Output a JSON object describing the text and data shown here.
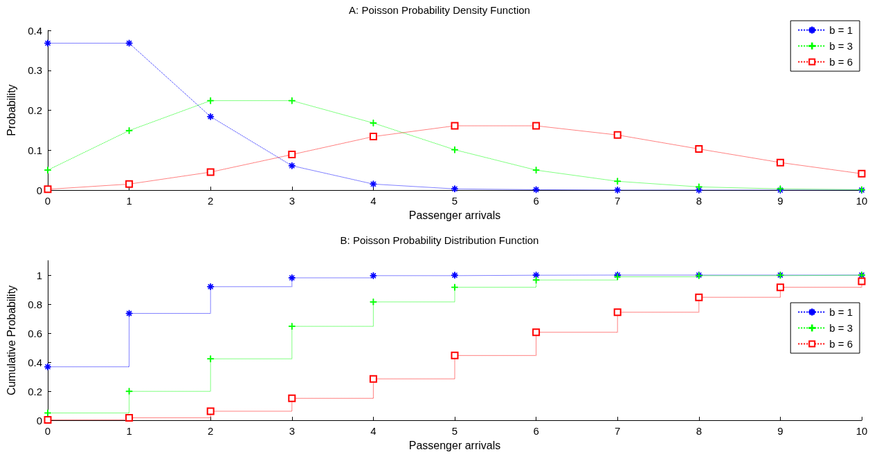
{
  "chart_data": [
    {
      "type": "line",
      "title": "A: Poisson Probability Density Function",
      "xlabel": "Passenger arrivals",
      "ylabel": "Probability",
      "x": [
        0,
        1,
        2,
        3,
        4,
        5,
        6,
        7,
        8,
        9,
        10
      ],
      "xlim": [
        0,
        10
      ],
      "xticks": [
        0,
        1,
        2,
        3,
        4,
        5,
        6,
        7,
        8,
        9,
        10
      ],
      "ylim": [
        0,
        0.4
      ],
      "yticks": [
        0,
        0.1,
        0.2,
        0.3,
        0.4
      ],
      "legend": "top right",
      "line_style": "dotted",
      "series": [
        {
          "name": "b = 1",
          "color": "#0000ff",
          "marker": "star",
          "values": [
            0.368,
            0.368,
            0.184,
            0.061,
            0.015,
            0.003,
            0.001,
            0,
            0,
            0,
            0
          ]
        },
        {
          "name": "b = 3",
          "color": "#00ff00",
          "marker": "cross",
          "values": [
            0.05,
            0.149,
            0.224,
            0.224,
            0.168,
            0.101,
            0.05,
            0.022,
            0.008,
            0.003,
            0.001
          ]
        },
        {
          "name": "b = 6",
          "color": "#ff0000",
          "marker": "square",
          "values": [
            0.002,
            0.015,
            0.045,
            0.089,
            0.134,
            0.161,
            0.161,
            0.138,
            0.103,
            0.069,
            0.041
          ]
        }
      ]
    },
    {
      "type": "step",
      "title": "B: Poisson Probability Distribution Function",
      "xlabel": "Passenger arrivals",
      "ylabel": "Cumulative Probability",
      "x": [
        0,
        1,
        2,
        3,
        4,
        5,
        6,
        7,
        8,
        9,
        10
      ],
      "xlim": [
        0,
        10
      ],
      "xticks": [
        0,
        1,
        2,
        3,
        4,
        5,
        6,
        7,
        8,
        9,
        10
      ],
      "ylim": [
        0,
        1.1
      ],
      "yticks": [
        0,
        0.2,
        0.4,
        0.6,
        0.8,
        1
      ],
      "legend": "right",
      "line_style": "dotted",
      "series": [
        {
          "name": "b = 1",
          "color": "#0000ff",
          "marker": "star",
          "values": [
            0.368,
            0.736,
            0.92,
            0.981,
            0.996,
            0.999,
            1,
            1,
            1,
            1,
            1
          ]
        },
        {
          "name": "b = 3",
          "color": "#00ff00",
          "marker": "cross",
          "values": [
            0.05,
            0.199,
            0.423,
            0.647,
            0.815,
            0.916,
            0.966,
            0.988,
            0.996,
            0.999,
            1
          ]
        },
        {
          "name": "b = 6",
          "color": "#ff0000",
          "marker": "square",
          "values": [
            0.002,
            0.017,
            0.062,
            0.151,
            0.285,
            0.446,
            0.606,
            0.744,
            0.847,
            0.916,
            0.957
          ]
        }
      ]
    }
  ]
}
